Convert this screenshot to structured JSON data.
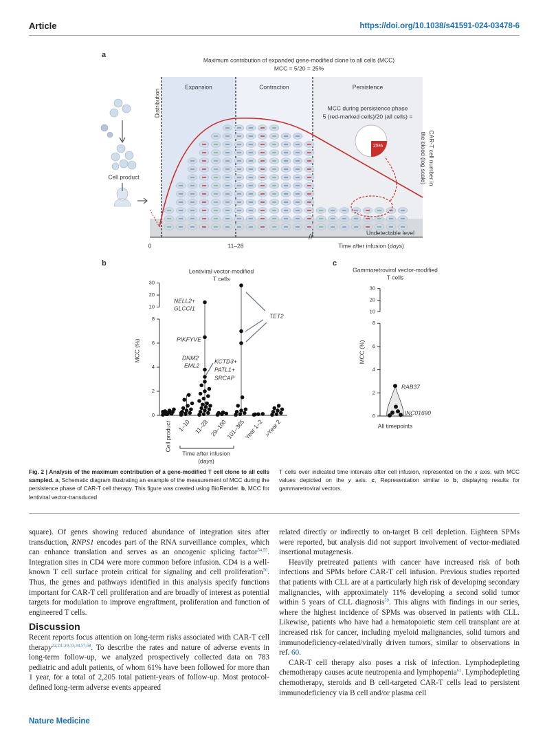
{
  "header": {
    "section": "Article",
    "doi": "https://doi.org/10.1038/s41591-024-03478-6"
  },
  "figure": {
    "a": {
      "letter": "a",
      "title": "Maximum contribution of expanded gene-modified clone to all cells (MCC)",
      "formula": "MCC = 5/20 = 25%",
      "phases": [
        "Expansion",
        "Contraction",
        "Persistence"
      ],
      "distribution": "Distribution",
      "persistence_note": [
        "MCC during persistence phase",
        "5 (red-marked cells)/20 (all cells) ="
      ],
      "pie": {
        "value": 25,
        "label": "25%"
      },
      "y_label": [
        "CAR-T cell number in",
        "the blood (log scale)"
      ],
      "cell_product": "Cell product",
      "undetectable": "Undetectable level",
      "x_labels": [
        "0",
        "11–28"
      ],
      "x_title": "Time after infusion (days)"
    },
    "b": {
      "letter": "b",
      "type": "strip",
      "title": [
        "Lentiviral vector-modified",
        "T cells"
      ],
      "ylabel": "MCC (%)",
      "yticks": [
        0,
        2,
        4,
        6,
        8,
        10,
        20,
        30
      ],
      "ybreak": 8,
      "categories": [
        "Cell product",
        "1–10",
        "11–28",
        "29–100",
        "101–365",
        "Year 1–2",
        ">Year 2"
      ],
      "values": [
        [
          0.05,
          0.1,
          0.15,
          0.2,
          0.25,
          0.3,
          0.35,
          0.4,
          0.5,
          0.1,
          0.2,
          0.3
        ],
        [
          0.05,
          0.1,
          0.2,
          0.3,
          0.4,
          0.5,
          0.6,
          0.8,
          1.0,
          1.3,
          1.7,
          0.2,
          0.15
        ],
        [
          0.05,
          0.1,
          0.2,
          0.3,
          0.4,
          0.5,
          0.6,
          0.7,
          0.8,
          0.9,
          1.0,
          1.2,
          1.4,
          1.6,
          1.8,
          2.0,
          2.2,
          2.5,
          2.8,
          3.2,
          3.8,
          6.5,
          14
        ],
        [
          0.05,
          0.1,
          0.15,
          0.2,
          0.25
        ],
        [
          0.05,
          0.1,
          0.2,
          0.3,
          0.4,
          0.5,
          0.8,
          1.5,
          6,
          7,
          28
        ],
        [
          0.05,
          0.1,
          0.12,
          0.08
        ],
        [
          0.05,
          0.1,
          0.2,
          0.3,
          0.4,
          0.5,
          0.6,
          0.8
        ]
      ],
      "xlabel": [
        "Time after infusion",
        "(days)"
      ],
      "annotations": {
        "nell2": [
          "NELL2+",
          "GLCCI1"
        ],
        "pikfyve": "PIKFYVE",
        "dnm2": [
          "DNM2",
          "EML2"
        ],
        "kctd3": [
          "KCTD3+",
          "PATL1+",
          "SRCAP"
        ],
        "tet2": "TET2"
      }
    },
    "c": {
      "letter": "c",
      "type": "violin",
      "title": [
        "Gammaretroviral vector-modified",
        "T cells"
      ],
      "ylabel": "MCC (%)",
      "yticks": [
        0,
        2,
        4,
        6,
        8,
        10,
        20,
        30
      ],
      "ybreak": 8,
      "category": "All timepoints",
      "values": [
        0.05,
        0.1,
        0.3,
        0.4,
        0.8,
        2.6
      ],
      "annotations": {
        "rab37": "RAB37",
        "linc": "LINC01690"
      }
    },
    "caption": {
      "left": [
        {
          "b": "Fig. 2 | Analysis of the maximum contribution of a gene-modified T cell clone to all cells sampled. a"
        },
        ", Schematic diagram illustrating an example of the measurement of MCC during the persistence phase of CAR-T cell therapy. This figure was created using BioRender. ",
        {
          "b": "b"
        },
        ", MCC for lentiviral vector-transduced"
      ],
      "right": [
        "T cells over indicated time intervals after cell infusion, represented on the ",
        {
          "i": "x"
        },
        " axis, with MCC values depicted on the ",
        {
          "i": "y"
        },
        " axis. ",
        {
          "b": "c"
        },
        ", Representation similar to ",
        {
          "b": "b"
        },
        ", displaying results for gammaretroviral vectors."
      ]
    }
  },
  "body": {
    "left": [
      [
        "square). Of genes showing reduced abundance of integration sites after transduction, ",
        {
          "i": "RNPS1"
        },
        " encodes part of the RNA surveillance complex, which can enhance translation and serves as an oncogenic splicing factor",
        {
          "sup": "54,55"
        },
        ". Integration sites in CD4 were more common before infusion. CD4 is a well-known T cell surface protein critical for signaling and cell proliferation",
        {
          "sup": "56"
        },
        ". Thus, the genes and pathways identified in this analysis specify functions important for CAR-T cell proliferation and are broadly of interest as potential targets for modulation to improve engraftment, proliferation and function of engineered T cells."
      ]
    ],
    "heading": "Discussion",
    "left2": [
      [
        "Recent reports focus attention on long-term risks associated with CAR-T cell therapy",
        {
          "sup": "22,24–29,33,34,57,58"
        },
        ". To describe the rates and nature of adverse events in long-term follow-up, we analyzed prospectively collected data on 783 pediatric and adult patients, of whom 61% have been followed for more than 1 year, for a total of 2,205 total patient-years of follow-up. Most protocol-defined long-term adverse events appeared"
      ]
    ],
    "right": [
      [
        "related directly or indirectly to on-target B cell depletion. Eighteen SPMs were reported, but analysis did not support involvement of vector-mediated insertional mutagenesis."
      ],
      [
        "Heavily pretreated patients with cancer have increased risk of both infections and SPMs before CAR-T cell infusion. Previous studies reported that patients with CLL are at a particularly high risk of developing secondary malignancies, with approximately 11% developing a second solid tumor within 5 years of CLL diagnosis",
        {
          "sup": "59"
        },
        ". This aligns with findings in our series, where the highest incidence of SPMs was observed in patients with CLL. Likewise, patients who have had a hematopoietic stem cell transplant are at increased risk for cancer, including myeloid malignancies, solid tumors and immunodeficiency-related/virally driven tumors, similar to observations in ref. ",
        {
          "link": "60"
        },
        "."
      ],
      [
        "CAR-T cell therapy also poses a risk of infection. Lymphodepleting chemotherapy causes acute neutropenia and lymphopenia",
        {
          "sup": "61"
        },
        ". Lymphodepleting chemotherapy, steroids and B cell-targeted CAR-T cells lead to persistent immunodeficiency via B cell and/or plasma cell"
      ]
    ]
  },
  "footer": {
    "journal": "Nature Medicine"
  }
}
